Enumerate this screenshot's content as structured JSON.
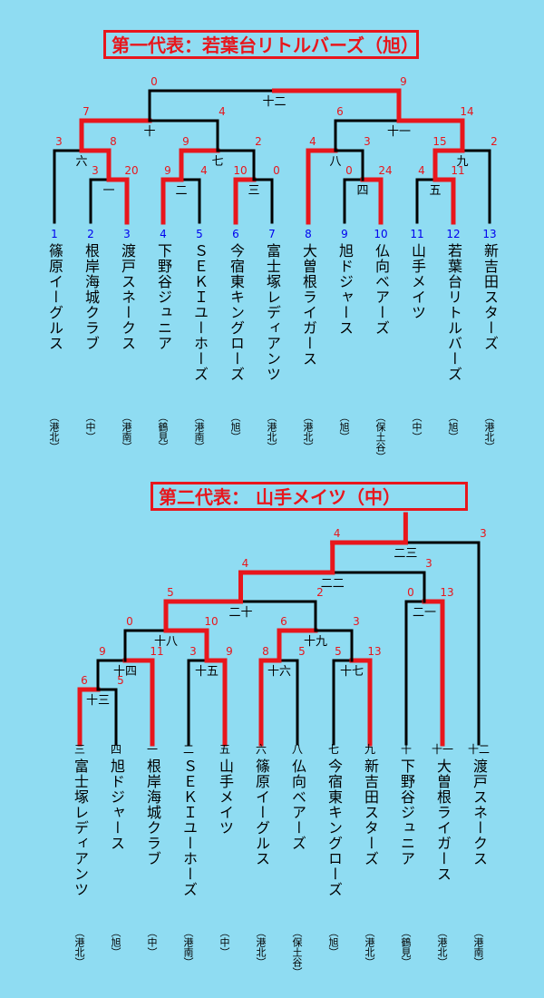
{
  "colors": {
    "background": "#8fdcf2",
    "winner": "#e8161c",
    "loser": "#000000",
    "score": "#e8161c",
    "seed": "#0000ee"
  },
  "bracket1": {
    "title": "第一代表：若葉台リトルバーズ（旭）",
    "teams": [
      {
        "seed": "1",
        "name": "篠原イーグルス",
        "district": "（港北）"
      },
      {
        "seed": "2",
        "name": "根岸海城クラブ",
        "district": "（中）"
      },
      {
        "seed": "3",
        "name": "渡戸スネークス",
        "district": "（港南）"
      },
      {
        "seed": "4",
        "name": "下野谷ジュニア",
        "district": "（鶴見）"
      },
      {
        "seed": "5",
        "name": "ＳＥＫＩユーホーズ",
        "district": "（港南）"
      },
      {
        "seed": "6",
        "name": "今宿東キングローズ",
        "district": "（旭）"
      },
      {
        "seed": "7",
        "name": "富士塚レディアンツ",
        "district": "（港北）"
      },
      {
        "seed": "8",
        "name": "大曽根ライガース",
        "district": "（港北）"
      },
      {
        "seed": "9",
        "name": "旭ドジャース",
        "district": "（旭）"
      },
      {
        "seed": "10",
        "name": "仏向ベアーズ",
        "district": "（保土谷）"
      },
      {
        "seed": "11",
        "name": "山手メイツ",
        "district": "（中）"
      },
      {
        "seed": "12",
        "name": "若葉台リトルバーズ",
        "district": "（旭）"
      },
      {
        "seed": "13",
        "name": "新吉田スターズ",
        "district": "（港北）"
      }
    ],
    "games": [
      {
        "no": "一",
        "scores": [
          "3",
          "20"
        ]
      },
      {
        "no": "二",
        "scores": [
          "9",
          "4"
        ]
      },
      {
        "no": "三",
        "scores": [
          "10",
          "0"
        ]
      },
      {
        "no": "四",
        "scores": [
          "0",
          "24"
        ]
      },
      {
        "no": "五",
        "scores": [
          "4",
          "11"
        ]
      },
      {
        "no": "六",
        "scores": [
          "3",
          "8"
        ]
      },
      {
        "no": "七",
        "scores": [
          "9",
          "2"
        ]
      },
      {
        "no": "八",
        "scores": [
          "4",
          "3"
        ]
      },
      {
        "no": "九",
        "scores": [
          "15",
          "2"
        ]
      },
      {
        "no": "十",
        "scores": [
          "7",
          "4"
        ]
      },
      {
        "no": "十一",
        "scores": [
          "6",
          "14"
        ]
      },
      {
        "no": "十二",
        "scores": [
          "0",
          "9"
        ]
      }
    ]
  },
  "bracket2": {
    "title": "第二代表： 山手メイツ（中）",
    "teams": [
      {
        "slot": "三",
        "name": "富士塚レディアンツ",
        "district": "（港北）"
      },
      {
        "slot": "四",
        "name": "旭ドジャース",
        "district": "（旭）"
      },
      {
        "slot": "一",
        "name": "根岸海城クラブ",
        "district": "（中）"
      },
      {
        "slot": "二",
        "name": "ＳＥＫＩユーホーズ",
        "district": "（港南）"
      },
      {
        "slot": "五",
        "name": "山手メイツ",
        "district": "（中）"
      },
      {
        "slot": "六",
        "name": "篠原イーグルス",
        "district": "（港北）"
      },
      {
        "slot": "八",
        "name": "仏向ベアーズ",
        "district": "（保土谷）"
      },
      {
        "slot": "七",
        "name": "今宿東キングローズ",
        "district": "（旭）"
      },
      {
        "slot": "九",
        "name": "新吉田スターズ",
        "district": "（港北）"
      },
      {
        "slot": "十",
        "name": "下野谷ジュニア",
        "district": "（鶴見）"
      },
      {
        "slot": "十一",
        "name": "大曽根ライガース",
        "district": "（港北）"
      },
      {
        "slot": "十二",
        "name": "渡戸スネークス",
        "district": "（港南）"
      }
    ],
    "games": [
      {
        "no": "十三",
        "scores": [
          "6",
          "5"
        ]
      },
      {
        "no": "十四",
        "scores": [
          "9",
          "11"
        ]
      },
      {
        "no": "十五",
        "scores": [
          "3",
          "9"
        ]
      },
      {
        "no": "十六",
        "scores": [
          "8",
          "5"
        ]
      },
      {
        "no": "十七",
        "scores": [
          "5",
          "13"
        ]
      },
      {
        "no": "十八",
        "scores": [
          "0",
          "10"
        ]
      },
      {
        "no": "十九",
        "scores": [
          "6",
          "3"
        ]
      },
      {
        "no": "二十",
        "scores": [
          "5",
          "2"
        ]
      },
      {
        "no": "二一",
        "scores": [
          "0",
          "13"
        ]
      },
      {
        "no": "二二",
        "scores": [
          "4",
          "3"
        ]
      },
      {
        "no": "二三",
        "scores": [
          "4",
          "3"
        ]
      }
    ]
  }
}
